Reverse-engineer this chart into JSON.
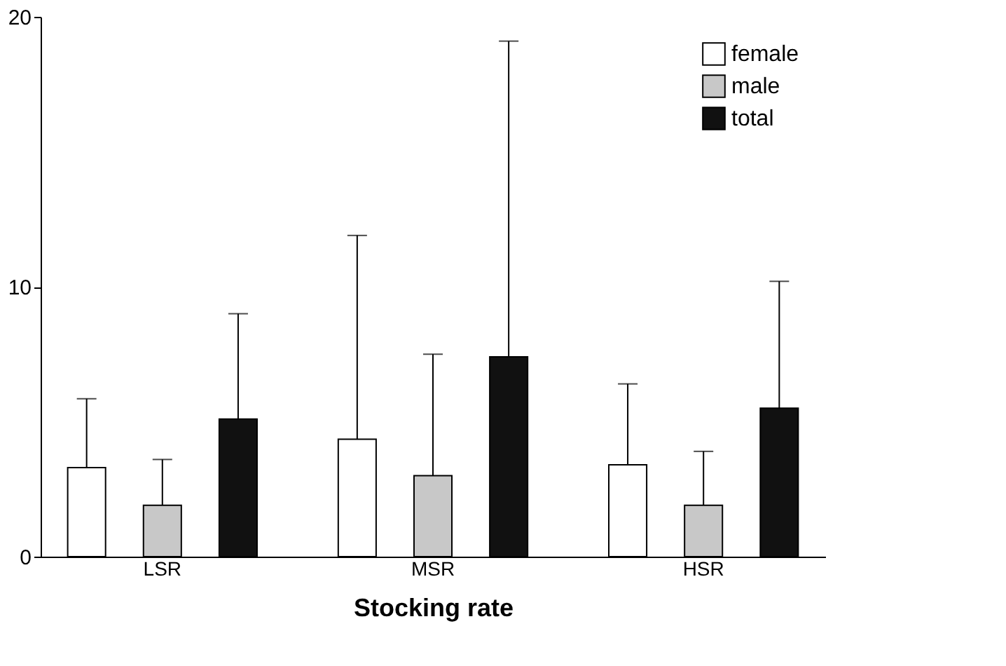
{
  "chart_data": {
    "type": "bar",
    "xlabel": "Stocking rate",
    "categories": [
      "LSR",
      "MSR",
      "HSR"
    ],
    "series": [
      {
        "name": "female",
        "color": "#ffffff",
        "values": [
          3.3,
          4.35,
          3.4
        ],
        "errors": [
          [
            3.3,
            5.85
          ],
          [
            4.35,
            11.9
          ],
          [
            3.4,
            6.4
          ]
        ]
      },
      {
        "name": "male",
        "color": "#c8c8c8",
        "values": [
          1.9,
          3.0,
          1.9
        ],
        "errors": [
          [
            1.9,
            3.6
          ],
          [
            3.0,
            7.5
          ],
          [
            1.9,
            3.9
          ]
        ]
      },
      {
        "name": "total",
        "color": "#111111",
        "values": [
          5.1,
          7.4,
          5.5
        ],
        "errors": [
          [
            5.1,
            9.0
          ],
          [
            7.4,
            19.1
          ],
          [
            5.5,
            10.2
          ]
        ]
      }
    ],
    "ylim": [
      0,
      20
    ],
    "yticks": [
      0,
      10,
      20
    ],
    "grid": false,
    "legend": "top right"
  }
}
